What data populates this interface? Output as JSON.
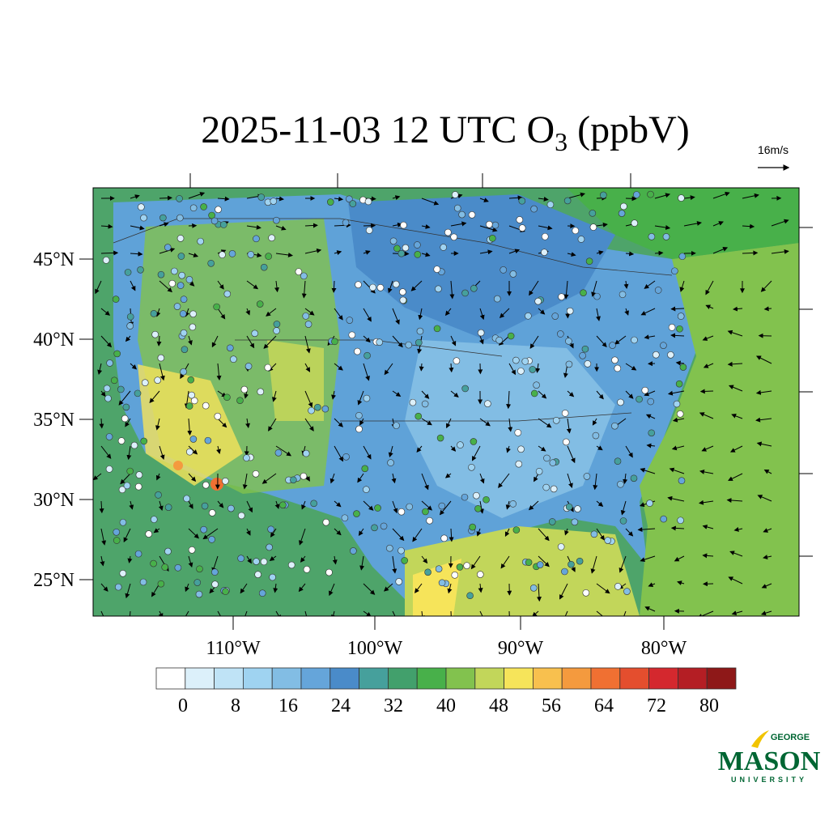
{
  "title": {
    "main": "2025-11-03 12 UTC O",
    "subscript": "3",
    "units": "(ppbV)"
  },
  "vector_scale": "16m/s",
  "lat_labels": [
    "45°N",
    "40°N",
    "35°N",
    "30°N",
    "25°N"
  ],
  "lon_labels": [
    "110°W",
    "100°W",
    "90°W",
    "80°W"
  ],
  "colorbar": {
    "colors": [
      "#ffffff",
      "#dcf0fa",
      "#bfe3f6",
      "#9fd3f1",
      "#82bde4",
      "#65a5da",
      "#4a8bc9",
      "#46a09c",
      "#42a06c",
      "#48b04a",
      "#82c24e",
      "#c2d65a",
      "#f6e45a",
      "#f8c04e",
      "#f49a3e",
      "#f07032",
      "#e44e2e",
      "#d4282e",
      "#b41e24",
      "#8e1818"
    ],
    "ticks": [
      0,
      8,
      16,
      24,
      32,
      40,
      48,
      56,
      64,
      72,
      80
    ]
  },
  "logo": {
    "top": "GEORGE",
    "middle": "MASON",
    "bottom": "UNIVERSITY"
  }
}
